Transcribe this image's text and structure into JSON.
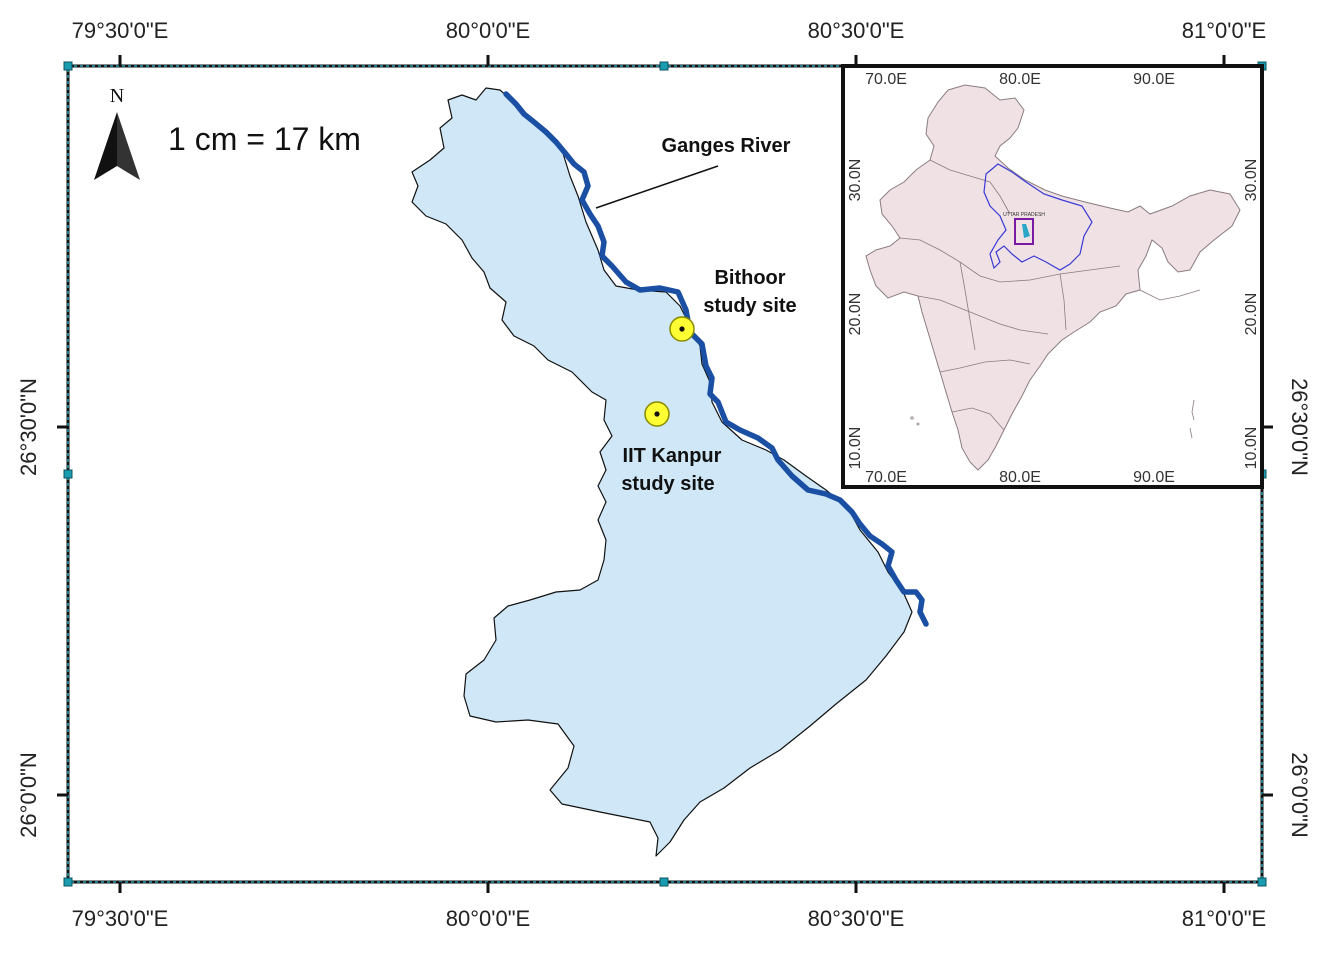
{
  "map": {
    "top_longitude_labels": [
      "79°30'0\"E",
      "80°0'0\"E",
      "80°30'0\"E",
      "81°0'0\"E"
    ],
    "bottom_longitude_labels": [
      "79°30'0\"E",
      "80°0'0\"E",
      "80°30'0\"E",
      "81°0'0\"E"
    ],
    "left_latitude_labels": [
      "26°30'0\"N",
      "26°0'0\"N"
    ],
    "right_latitude_labels": [
      "26°30'0\"N",
      "26°0'0\"N"
    ],
    "north_arrow_label": "N",
    "scale_text": "1 cm = 17 km",
    "river_label": "Ganges River",
    "sites": [
      {
        "line1": "Bithoor",
        "line2": "study site"
      },
      {
        "line1": "IIT Kanpur",
        "line2": "study site"
      }
    ],
    "colors": {
      "district_fill": "#cfe7f6",
      "river": "#1a4fa3",
      "site_marker": "#ffff33",
      "inset_land": "#efe1e4",
      "inset_state_outline": "#3a3ad6",
      "inset_box": "#7a1aa3"
    }
  },
  "inset": {
    "top_longitude_labels": [
      "70.0E",
      "80.0E",
      "90.0E"
    ],
    "bottom_longitude_labels": [
      "70.0E",
      "80.0E",
      "90.0E"
    ],
    "left_latitude_labels": [
      "30.0N",
      "20.0N",
      "10.0N"
    ],
    "right_latitude_labels": [
      "30.0N",
      "20.0N",
      "10.0N"
    ],
    "state_label": "UTTAR PRADESH"
  }
}
